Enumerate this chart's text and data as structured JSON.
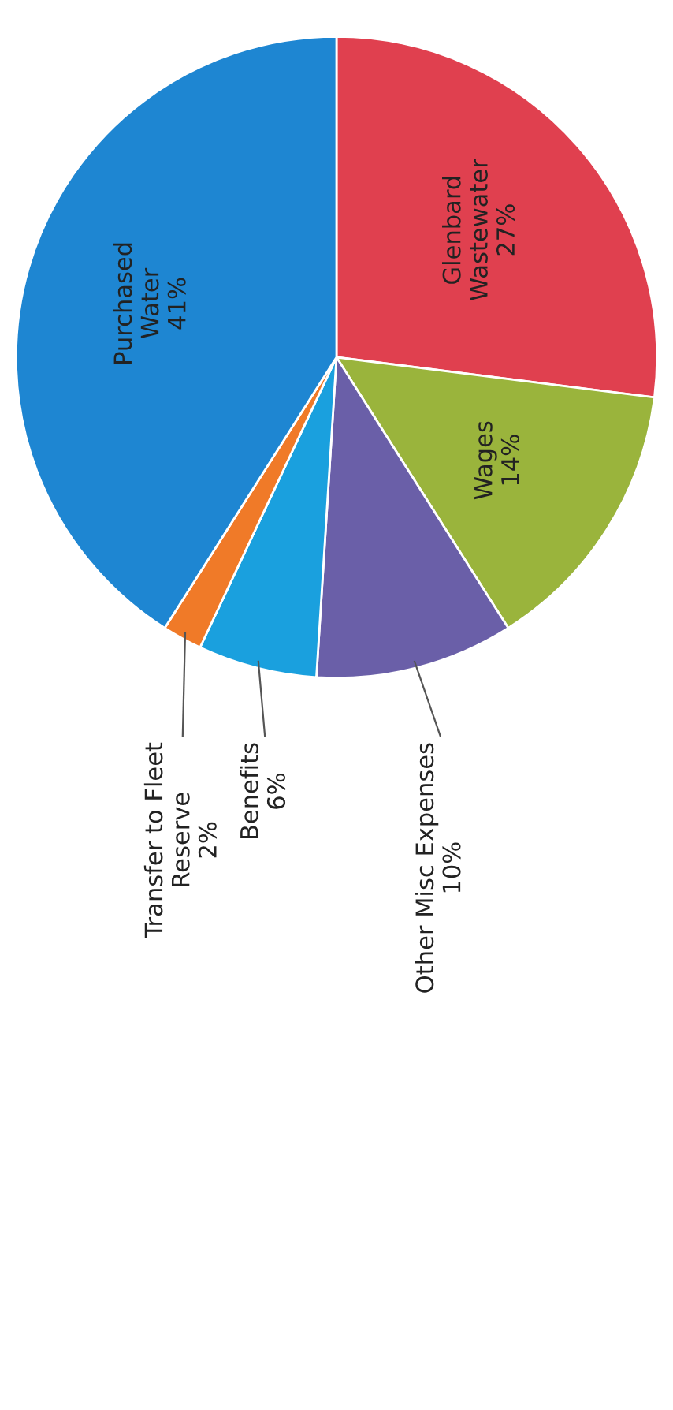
{
  "chart_data": {
    "type": "pie",
    "categories": [
      "Glenbard Wastewater",
      "Wages",
      "Other Misc Expenses",
      "Benefits",
      "Transfer to Fleet Reserve",
      "Purchased Water"
    ],
    "values": [
      27,
      14,
      10,
      6,
      2,
      41
    ],
    "value_labels": [
      "27%",
      "14%",
      "10%",
      "6%",
      "2%",
      "41%"
    ],
    "colors": [
      "#e0404f",
      "#9ab43c",
      "#6a5fa8",
      "#1aa0de",
      "#f07a28",
      "#1e86d2"
    ]
  }
}
